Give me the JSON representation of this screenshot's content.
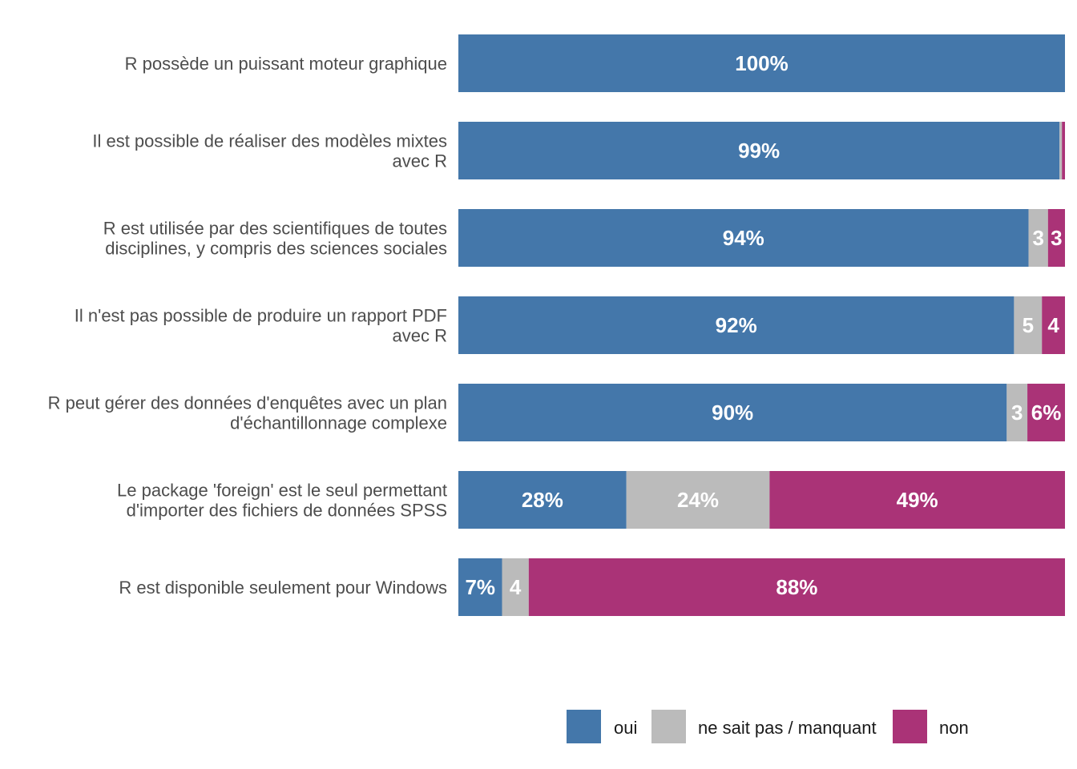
{
  "chart_data": {
    "type": "bar",
    "orientation": "horizontal",
    "stacked": true,
    "percent": true,
    "xlim": [
      0,
      100
    ],
    "grid": false,
    "legend_position": "bottom",
    "categories": [
      [
        "R possède un puissant moteur graphique"
      ],
      [
        "Il est possible de réaliser des modèles mixtes",
        "avec R"
      ],
      [
        "R est utilisée par des scientifiques de toutes",
        "disciplines, y compris des sciences sociales"
      ],
      [
        "Il n'est pas possible de produire un rapport PDF",
        "avec R"
      ],
      [
        "R peut gérer des données d'enquêtes avec un plan",
        "d'échantillonnage complexe"
      ],
      [
        "Le package 'foreign' est le seul permettant",
        "d'importer des fichiers de données SPSS"
      ],
      [
        "R est disponible seulement pour Windows"
      ]
    ],
    "series": [
      {
        "name": "oui",
        "color": "#4477AA",
        "values": [
          100,
          99.1,
          94,
          91.6,
          90.4,
          27.7,
          7.2
        ],
        "labels": [
          "100%",
          "99%",
          "94%",
          "92%",
          "90%",
          "28%",
          "7%"
        ]
      },
      {
        "name": "ne sait pas / manquant",
        "color": "#BBBBBB",
        "values": [
          0,
          0.4,
          3.2,
          4.6,
          3.4,
          23.6,
          4.4
        ],
        "labels": [
          "",
          "",
          "3",
          "5",
          "3",
          "24%",
          "4"
        ]
      },
      {
        "name": "non",
        "color": "#AA3377",
        "values": [
          0,
          0.5,
          2.8,
          3.8,
          6.2,
          48.7,
          88.4
        ],
        "labels": [
          "",
          "",
          "3",
          "4",
          "6%",
          "49%",
          "88%"
        ]
      }
    ]
  }
}
